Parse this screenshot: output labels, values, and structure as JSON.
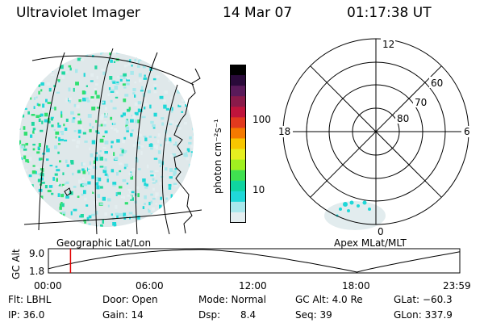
{
  "header": {
    "title": "Ultraviolet Imager",
    "date": "14 Mar 07",
    "time": "01:17:38 UT"
  },
  "colorbar": {
    "label": "photon cm⁻²s⁻¹",
    "ticks": [
      "100",
      "10"
    ],
    "colors": [
      "#000000",
      "#2a0a3a",
      "#5a1a5a",
      "#8a1a4a",
      "#c0143c",
      "#e23a1e",
      "#f57a00",
      "#f7c600",
      "#e6ef20",
      "#a0f020",
      "#40e050",
      "#10d4a0",
      "#20d8d8",
      "#a8e8ec",
      "#e4eef0"
    ]
  },
  "left_panel": {
    "caption": "Geographic Lat/Lon"
  },
  "polar_panel": {
    "caption": "Apex MLat/MLT",
    "mlt_labels": [
      "12",
      "18",
      "6",
      "0"
    ],
    "lat_labels": [
      "60",
      "70",
      "80"
    ]
  },
  "altitude_plot": {
    "ylabel": "GC Alt",
    "y_ticks": [
      "9.0",
      "1.8"
    ],
    "x_ticks": [
      "00:00",
      "06:00",
      "12:00",
      "18:00",
      "23:59"
    ],
    "current_marker_hour": 1.29
  },
  "info": {
    "filter": "Flt: LBHL",
    "ip": "IP: 36.0",
    "door": "Door: Open",
    "gain": "Gain: 14",
    "mode": "Mode: Normal",
    "dsp_label": "Dsp:",
    "dsp_value": "8.4",
    "gc_alt": "GC Alt: 4.0 Re",
    "seq": "Seq: 39",
    "glat": "GLat: −60.3",
    "glon": "GLon: 337.9"
  }
}
